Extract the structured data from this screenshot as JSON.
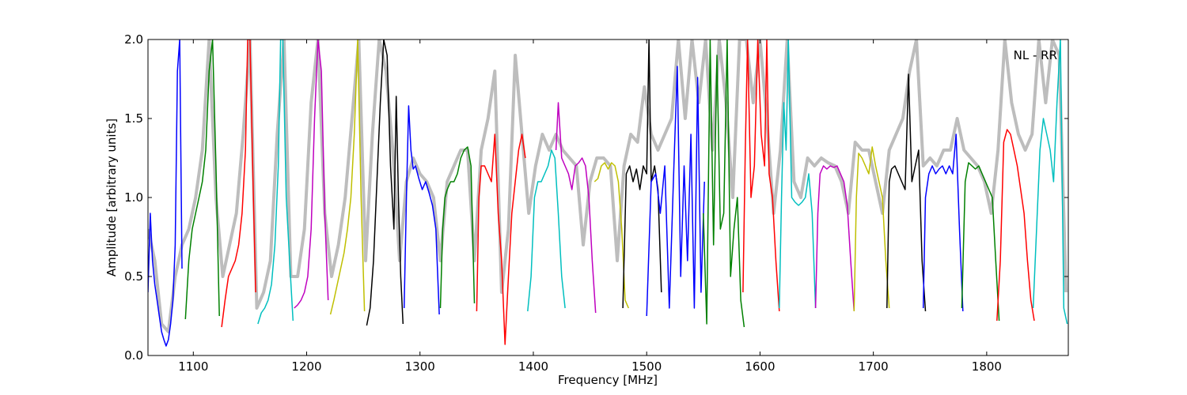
{
  "chart_data": {
    "type": "line",
    "title": "",
    "xlabel": "Frequency [MHz]",
    "ylabel": "Amplitude [arbitrary units]",
    "xlim": [
      1060,
      1872
    ],
    "ylim": [
      0.0,
      2.0
    ],
    "x_ticks": [
      1100,
      1200,
      1300,
      1400,
      1500,
      1600,
      1700,
      1800
    ],
    "x_tick_labels": [
      "1100",
      "1200",
      "1300",
      "1400",
      "1500",
      "1600",
      "1700",
      "1800"
    ],
    "y_ticks": [
      0.0,
      0.5,
      1.0,
      1.5,
      2.0
    ],
    "y_tick_labels": [
      "0.0",
      "0.5",
      "1.0",
      "1.5",
      "2.0"
    ],
    "annotation": "NL - RR",
    "grid": false,
    "background_color": "#bdbdbd",
    "segments": [
      {
        "color": "#0000ff",
        "x": [
          1060,
          1062,
          1064,
          1066,
          1068,
          1070,
          1072,
          1074,
          1076,
          1078,
          1080,
          1082,
          1084,
          1086,
          1088,
          1090
        ],
        "y": [
          0.4,
          0.9,
          0.6,
          0.45,
          0.35,
          0.25,
          0.15,
          0.1,
          0.06,
          0.1,
          0.2,
          0.35,
          0.7,
          1.8,
          2.0,
          0.55
        ]
      },
      {
        "color": "#008000",
        "x": [
          1093,
          1096,
          1099,
          1102,
          1105,
          1108,
          1111,
          1114,
          1117,
          1120,
          1123
        ],
        "y": [
          0.23,
          0.6,
          0.8,
          0.9,
          1.0,
          1.1,
          1.3,
          1.8,
          2.0,
          1.2,
          0.25
        ]
      },
      {
        "color": "#ff0000",
        "x": [
          1125,
          1128,
          1131,
          1134,
          1137,
          1140,
          1143,
          1146,
          1148,
          1150,
          1153,
          1155
        ],
        "y": [
          0.18,
          0.35,
          0.5,
          0.55,
          0.6,
          0.7,
          0.9,
          1.3,
          2.0,
          2.0,
          1.0,
          0.4
        ]
      },
      {
        "color": "#00bfbf",
        "x": [
          1157,
          1160,
          1163,
          1166,
          1169,
          1172,
          1175,
          1177,
          1179,
          1182,
          1185,
          1188
        ],
        "y": [
          0.2,
          0.27,
          0.3,
          0.35,
          0.45,
          0.7,
          1.2,
          2.0,
          2.0,
          1.0,
          0.6,
          0.22
        ]
      },
      {
        "color": "#bf00bf",
        "x": [
          1189,
          1192,
          1195,
          1198,
          1201,
          1204,
          1207,
          1210,
          1213,
          1216,
          1219
        ],
        "y": [
          0.3,
          0.32,
          0.35,
          0.4,
          0.5,
          0.8,
          1.5,
          2.0,
          1.8,
          0.9,
          0.35
        ]
      },
      {
        "color": "#bfbf00",
        "x": [
          1221,
          1224,
          1227,
          1230,
          1233,
          1236,
          1239,
          1242,
          1245,
          1248,
          1251
        ],
        "y": [
          0.26,
          0.35,
          0.45,
          0.55,
          0.65,
          0.8,
          1.0,
          1.4,
          2.0,
          1.0,
          0.28
        ]
      },
      {
        "color": "#000000",
        "x": [
          1253,
          1256,
          1259,
          1262,
          1265,
          1268,
          1271,
          1274,
          1277,
          1279,
          1281,
          1283,
          1285
        ],
        "y": [
          0.19,
          0.3,
          0.6,
          1.1,
          1.6,
          2.0,
          1.9,
          1.2,
          0.8,
          1.64,
          1.0,
          0.5,
          0.2
        ]
      },
      {
        "color": "#0000ff",
        "x": [
          1286,
          1288,
          1290,
          1292,
          1294,
          1296,
          1299,
          1302,
          1305,
          1308,
          1311,
          1314,
          1317
        ],
        "y": [
          0.3,
          1.0,
          1.58,
          1.3,
          1.18,
          1.2,
          1.12,
          1.05,
          1.1,
          1.03,
          0.95,
          0.8,
          0.26
        ]
      },
      {
        "color": "#008000",
        "x": [
          1318,
          1320,
          1322,
          1324,
          1327,
          1330,
          1333,
          1336,
          1339,
          1342,
          1345,
          1348
        ],
        "y": [
          0.3,
          0.8,
          1.0,
          1.05,
          1.1,
          1.1,
          1.15,
          1.25,
          1.3,
          1.32,
          1.2,
          0.33
        ]
      },
      {
        "color": "#ff0000",
        "x": [
          1350,
          1352,
          1354,
          1357,
          1360,
          1363,
          1366,
          1369,
          1372,
          1375,
          1378,
          1381,
          1384,
          1387,
          1390,
          1393
        ],
        "y": [
          0.28,
          1.0,
          1.2,
          1.2,
          1.15,
          1.1,
          1.4,
          0.9,
          0.6,
          0.07,
          0.5,
          0.9,
          1.1,
          1.3,
          1.4,
          1.25
        ]
      },
      {
        "color": "#00bfbf",
        "x": [
          1395,
          1398,
          1401,
          1404,
          1407,
          1410,
          1413,
          1416,
          1419,
          1422,
          1425,
          1428
        ],
        "y": [
          0.28,
          0.5,
          1.0,
          1.1,
          1.1,
          1.15,
          1.2,
          1.3,
          1.25,
          0.9,
          0.5,
          0.3
        ]
      },
      {
        "color": "#bf00bf",
        "x": [
          1420,
          1422,
          1425,
          1428,
          1431,
          1434,
          1437,
          1440,
          1443,
          1446,
          1449,
          1452,
          1455
        ],
        "y": [
          1.3,
          1.6,
          1.25,
          1.2,
          1.15,
          1.05,
          1.2,
          1.22,
          1.25,
          1.2,
          1.0,
          0.6,
          0.27
        ]
      },
      {
        "color": "#bfbf00",
        "x": [
          1454,
          1457,
          1460,
          1463,
          1466,
          1469,
          1472,
          1475,
          1478,
          1481,
          1484
        ],
        "y": [
          1.1,
          1.12,
          1.2,
          1.22,
          1.18,
          1.22,
          1.2,
          1.1,
          0.8,
          0.35,
          0.3
        ]
      },
      {
        "color": "#000000",
        "x": [
          1479,
          1482,
          1485,
          1488,
          1491,
          1494,
          1497,
          1500,
          1502,
          1504,
          1507,
          1510,
          1513
        ],
        "y": [
          0.3,
          1.15,
          1.2,
          1.1,
          1.18,
          1.05,
          1.2,
          1.15,
          2.0,
          1.1,
          1.2,
          1.05,
          0.4
        ]
      },
      {
        "color": "#0000ff",
        "x": [
          1500,
          1504,
          1508,
          1512,
          1516,
          1520,
          1524,
          1527,
          1530,
          1533,
          1536,
          1539,
          1542,
          1545,
          1548,
          1551
        ],
        "y": [
          0.25,
          1.1,
          1.15,
          0.9,
          1.2,
          0.3,
          1.2,
          1.83,
          0.5,
          1.2,
          0.6,
          1.4,
          0.3,
          1.76,
          0.4,
          1.1
        ]
      },
      {
        "color": "#008000",
        "x": [
          1550,
          1553,
          1556,
          1559,
          1562,
          1565,
          1568,
          1571,
          1574,
          1577,
          1580,
          1583,
          1586
        ],
        "y": [
          0.9,
          0.2,
          2.0,
          0.7,
          1.9,
          0.8,
          0.9,
          2.0,
          0.5,
          0.8,
          1.0,
          0.35,
          0.18
        ]
      },
      {
        "color": "#ff0000",
        "x": [
          1585,
          1587,
          1589,
          1592,
          1595,
          1598,
          1601,
          1604,
          1606,
          1608,
          1611,
          1614,
          1617
        ],
        "y": [
          0.4,
          1.3,
          2.0,
          1.0,
          1.2,
          2.0,
          1.4,
          1.2,
          2.0,
          1.15,
          1.0,
          0.6,
          0.28
        ]
      },
      {
        "color": "#00bfbf",
        "x": [
          1617,
          1619,
          1621,
          1623,
          1625,
          1628,
          1631,
          1634,
          1637,
          1640,
          1643,
          1646,
          1649
        ],
        "y": [
          0.3,
          1.0,
          1.6,
          1.3,
          2.0,
          1.0,
          0.97,
          0.95,
          0.97,
          1.0,
          1.15,
          0.9,
          0.3
        ]
      },
      {
        "color": "#bf00bf",
        "x": [
          1649,
          1651,
          1653,
          1656,
          1659,
          1662,
          1665,
          1668,
          1671,
          1674,
          1677,
          1680,
          1683
        ],
        "y": [
          0.3,
          0.9,
          1.15,
          1.2,
          1.18,
          1.2,
          1.19,
          1.2,
          1.15,
          1.1,
          0.95,
          0.6,
          0.28
        ]
      },
      {
        "color": "#bfbf00",
        "x": [
          1683,
          1685,
          1687,
          1690,
          1693,
          1696,
          1699,
          1702,
          1705,
          1708,
          1711,
          1714
        ],
        "y": [
          0.28,
          1.0,
          1.28,
          1.25,
          1.2,
          1.15,
          1.32,
          1.2,
          1.1,
          1.0,
          0.6,
          0.3
        ]
      },
      {
        "color": "#000000",
        "x": [
          1712,
          1714,
          1716,
          1719,
          1722,
          1725,
          1728,
          1731,
          1734,
          1737,
          1740,
          1743,
          1746
        ],
        "y": [
          0.3,
          1.1,
          1.18,
          1.2,
          1.15,
          1.1,
          1.05,
          1.78,
          1.1,
          1.2,
          1.3,
          0.6,
          0.28
        ]
      },
      {
        "color": "#0000ff",
        "x": [
          1744,
          1746,
          1749,
          1752,
          1755,
          1758,
          1761,
          1764,
          1767,
          1770,
          1773,
          1776,
          1779
        ],
        "y": [
          0.3,
          1.0,
          1.15,
          1.2,
          1.15,
          1.18,
          1.2,
          1.15,
          1.2,
          1.15,
          1.4,
          0.8,
          0.28
        ]
      },
      {
        "color": "#008000",
        "x": [
          1778,
          1781,
          1784,
          1787,
          1790,
          1793,
          1796,
          1799,
          1802,
          1805,
          1808,
          1811
        ],
        "y": [
          0.3,
          1.1,
          1.22,
          1.2,
          1.18,
          1.2,
          1.15,
          1.1,
          1.05,
          1.0,
          0.6,
          0.22
        ]
      },
      {
        "color": "#ff0000",
        "x": [
          1809,
          1812,
          1815,
          1818,
          1821,
          1824,
          1827,
          1830,
          1833,
          1836,
          1839,
          1842
        ],
        "y": [
          0.22,
          0.6,
          1.35,
          1.43,
          1.4,
          1.3,
          1.2,
          1.05,
          0.9,
          0.6,
          0.35,
          0.22
        ]
      },
      {
        "color": "#00bfbf",
        "x": [
          1841,
          1844,
          1847,
          1850,
          1853,
          1856,
          1859,
          1862,
          1865,
          1868,
          1871
        ],
        "y": [
          0.3,
          0.8,
          1.3,
          1.5,
          1.4,
          1.3,
          1.1,
          1.6,
          2.0,
          0.3,
          0.2
        ]
      }
    ],
    "background_trace": {
      "color": "#bdbdbd",
      "x": [
        1060,
        1066,
        1072,
        1078,
        1084,
        1090,
        1096,
        1102,
        1108,
        1114,
        1120,
        1126,
        1132,
        1138,
        1144,
        1150,
        1156,
        1162,
        1168,
        1174,
        1180,
        1186,
        1192,
        1198,
        1204,
        1210,
        1216,
        1222,
        1228,
        1234,
        1240,
        1246,
        1252,
        1258,
        1264,
        1270,
        1276,
        1282,
        1288,
        1294,
        1300,
        1306,
        1312,
        1318,
        1324,
        1330,
        1336,
        1342,
        1348,
        1354,
        1360,
        1366,
        1372,
        1378,
        1384,
        1390,
        1396,
        1402,
        1408,
        1414,
        1420,
        1426,
        1432,
        1438,
        1444,
        1450,
        1456,
        1462,
        1468,
        1474,
        1480,
        1486,
        1492,
        1498,
        1504,
        1510,
        1516,
        1522,
        1528,
        1534,
        1540,
        1546,
        1552,
        1558,
        1564,
        1570,
        1576,
        1582,
        1588,
        1594,
        1600,
        1606,
        1612,
        1618,
        1624,
        1630,
        1636,
        1642,
        1648,
        1654,
        1660,
        1666,
        1672,
        1678,
        1684,
        1690,
        1696,
        1702,
        1708,
        1714,
        1720,
        1726,
        1732,
        1738,
        1744,
        1750,
        1756,
        1762,
        1768,
        1774,
        1780,
        1786,
        1792,
        1798,
        1804,
        1810,
        1816,
        1822,
        1828,
        1834,
        1840,
        1846,
        1852,
        1858,
        1864,
        1870
      ],
      "y": [
        0.8,
        0.6,
        0.2,
        0.15,
        0.5,
        0.7,
        0.8,
        1.0,
        1.3,
        2.0,
        1.0,
        0.5,
        0.7,
        0.9,
        1.4,
        2.0,
        0.3,
        0.4,
        0.6,
        1.4,
        2.0,
        0.5,
        0.5,
        0.8,
        1.6,
        2.0,
        0.9,
        0.5,
        0.7,
        1.0,
        1.5,
        2.0,
        0.6,
        1.4,
        2.0,
        1.8,
        1.3,
        0.6,
        1.1,
        1.25,
        1.15,
        1.1,
        1.0,
        0.6,
        1.1,
        1.2,
        1.3,
        1.3,
        0.6,
        1.3,
        1.5,
        1.8,
        0.4,
        0.8,
        1.9,
        1.4,
        0.9,
        1.2,
        1.4,
        1.3,
        1.4,
        1.3,
        1.25,
        1.2,
        0.7,
        1.1,
        1.25,
        1.25,
        1.2,
        0.6,
        1.2,
        1.4,
        1.35,
        1.7,
        1.4,
        1.3,
        1.4,
        1.5,
        2.0,
        1.5,
        2.0,
        1.6,
        2.0,
        1.3,
        2.0,
        1.6,
        1.0,
        2.0,
        2.0,
        1.6,
        2.0,
        1.5,
        0.9,
        1.3,
        2.0,
        1.1,
        1.0,
        1.25,
        1.2,
        1.25,
        1.22,
        1.2,
        1.1,
        0.9,
        1.35,
        1.3,
        1.3,
        1.1,
        0.9,
        1.3,
        1.4,
        1.5,
        1.8,
        2.0,
        1.2,
        1.25,
        1.2,
        1.3,
        1.3,
        1.5,
        1.3,
        1.25,
        1.2,
        1.1,
        0.9,
        1.3,
        2.0,
        1.6,
        1.4,
        1.3,
        1.4,
        2.0,
        1.6,
        2.0,
        1.9,
        0.4
      ]
    }
  }
}
